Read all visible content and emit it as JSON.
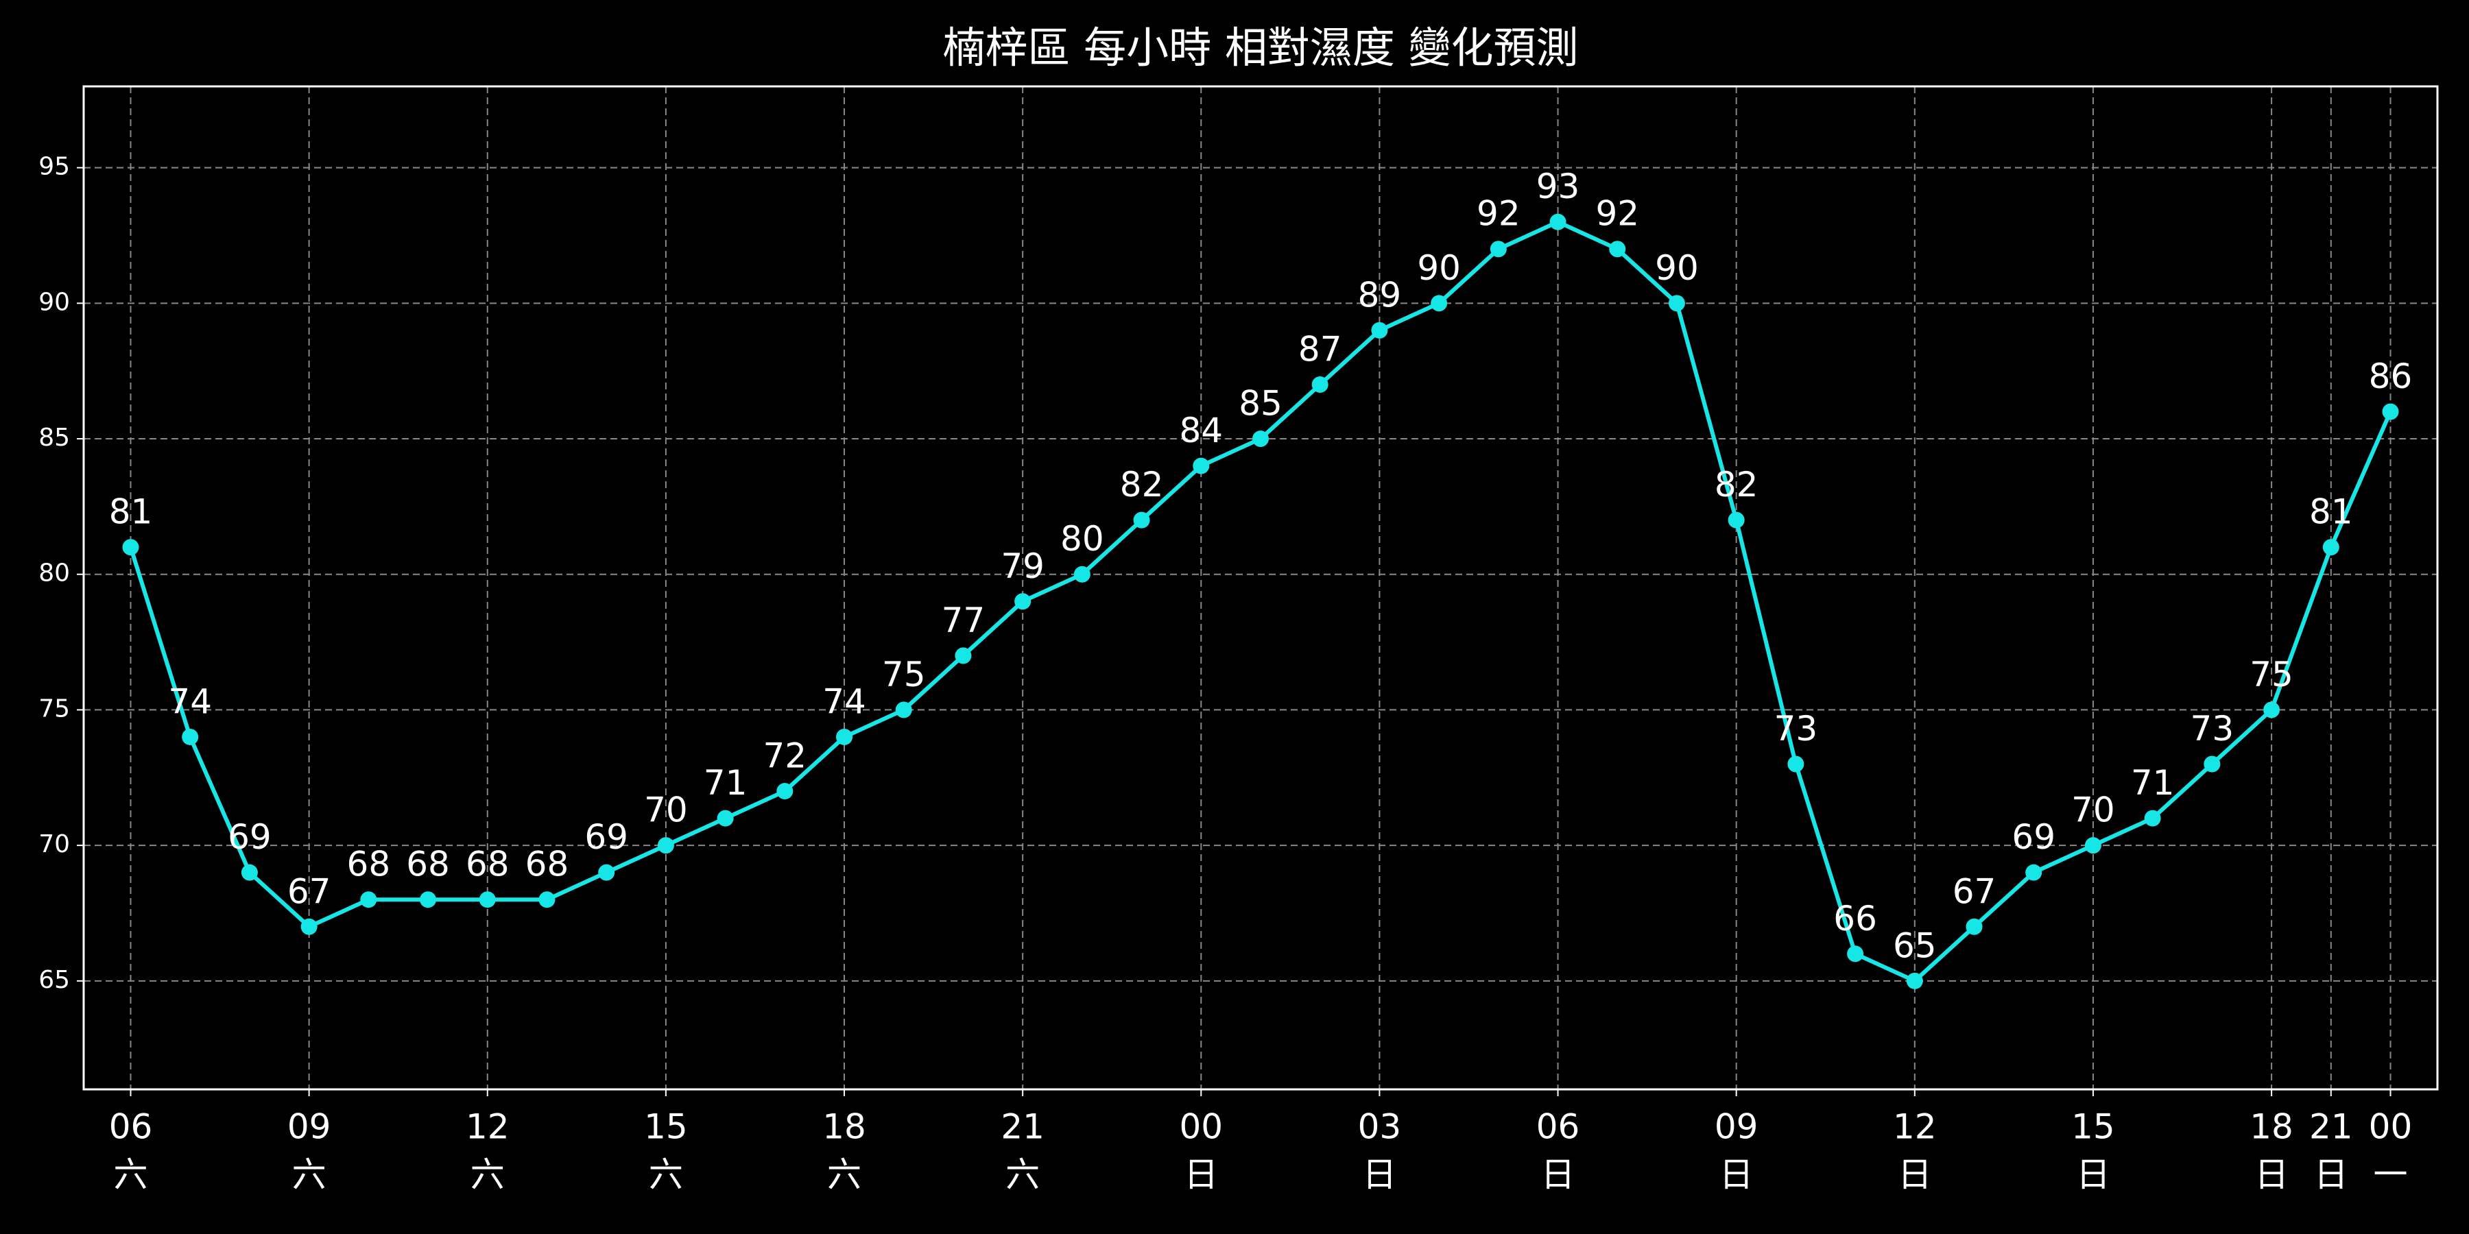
{
  "chart_data": {
    "type": "line",
    "title": "楠梓區 每小時 相對濕度 變化預測",
    "categories": [
      "06",
      null,
      null,
      "09",
      null,
      null,
      "12",
      null,
      null,
      "15",
      null,
      null,
      "18",
      null,
      null,
      "21",
      null,
      null,
      "00",
      null,
      null,
      "03",
      null,
      null,
      "06",
      null,
      null,
      "09",
      null,
      null,
      "12",
      null,
      null,
      "15",
      null,
      null,
      "18",
      "21",
      "00"
    ],
    "weekdays": [
      "六",
      null,
      null,
      "六",
      null,
      null,
      "六",
      null,
      null,
      "六",
      null,
      null,
      "六",
      null,
      null,
      "六",
      null,
      null,
      "日",
      null,
      null,
      "日",
      null,
      null,
      "日",
      null,
      null,
      "日",
      null,
      null,
      "日",
      null,
      null,
      "日",
      null,
      null,
      "日",
      "日",
      "一"
    ],
    "values": [
      81,
      74,
      69,
      67,
      68,
      68,
      68,
      68,
      69,
      70,
      71,
      72,
      74,
      75,
      77,
      79,
      80,
      82,
      84,
      85,
      87,
      89,
      90,
      92,
      93,
      92,
      90,
      82,
      73,
      66,
      65,
      67,
      69,
      70,
      71,
      73,
      75,
      81,
      86
    ],
    "color": "#17e6e6",
    "ylim": [
      61,
      98
    ],
    "yticks": [
      65,
      70,
      75,
      80,
      85,
      90,
      95
    ],
    "grid": true
  }
}
